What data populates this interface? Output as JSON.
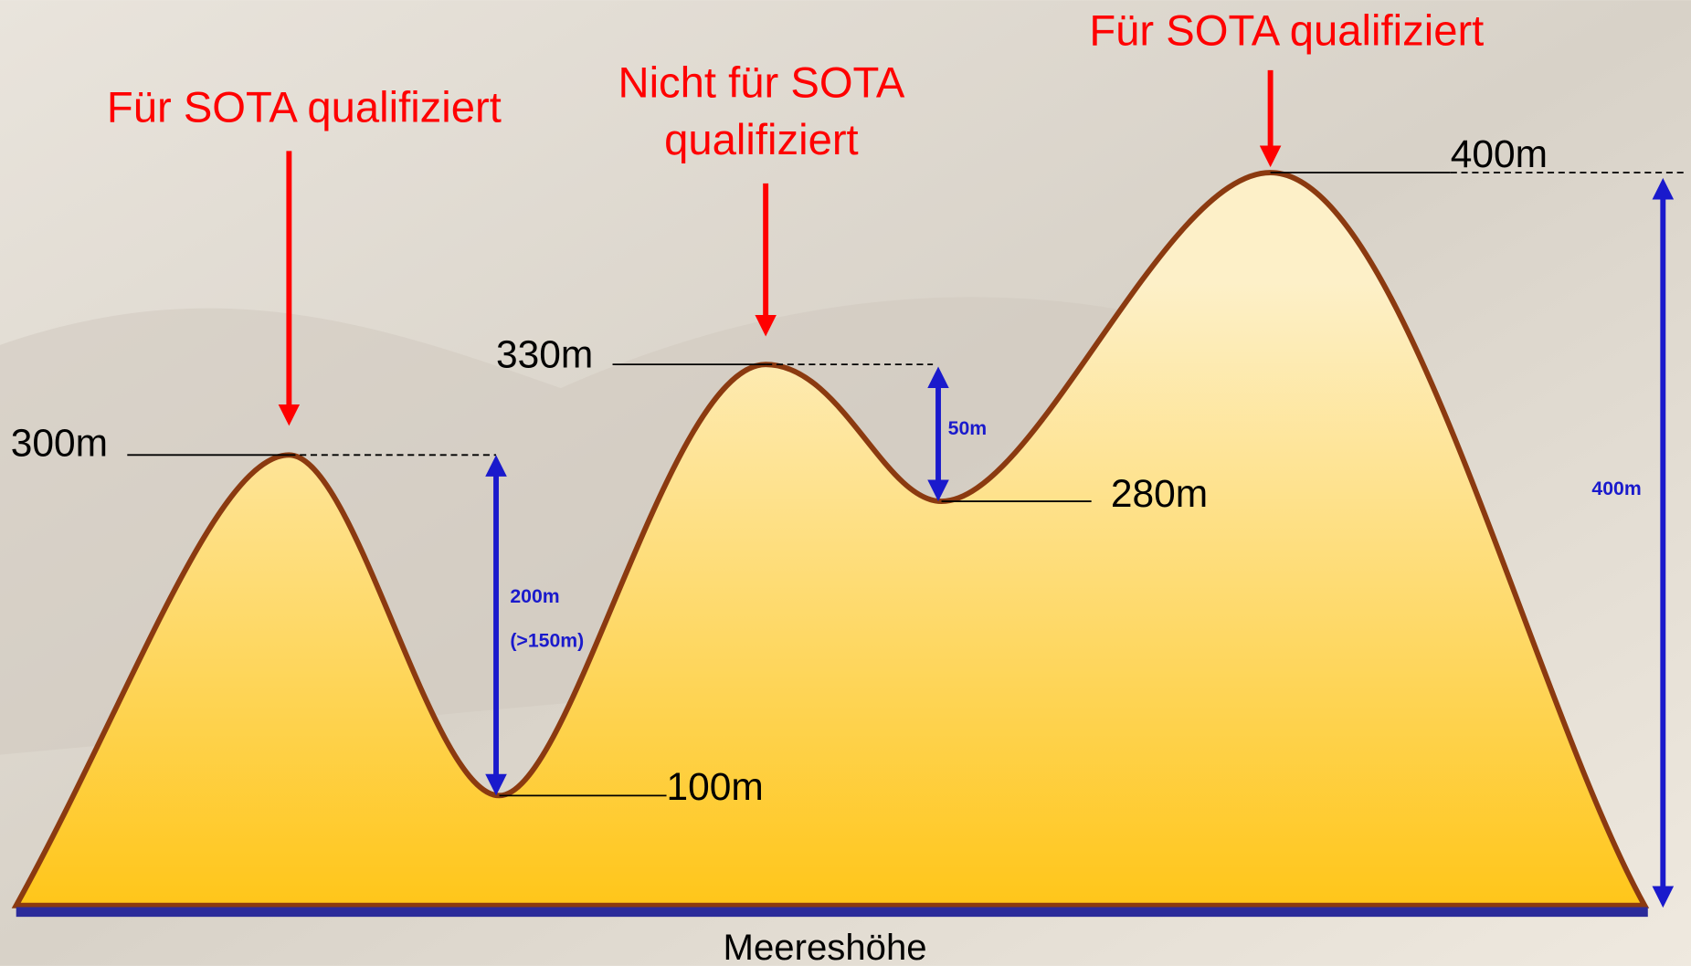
{
  "labels": {
    "peak1": "Für SOTA qualifiziert",
    "peak2": [
      "Nicht für SOTA",
      "qualifiziert"
    ],
    "peak3": "Für SOTA qualifiziert",
    "h300": "300m",
    "h330": "330m",
    "h400": "400m",
    "h280": "280m",
    "h100": "100m",
    "d200": "200m",
    "d150": "(>150m)",
    "d50": "50m",
    "d400": "400m",
    "base": "Meereshöhe"
  }
}
